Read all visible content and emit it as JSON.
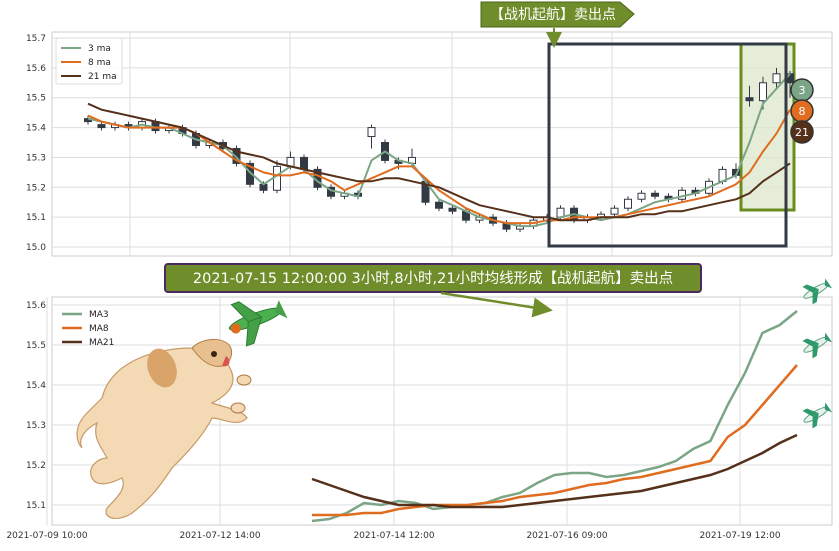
{
  "colors": {
    "ma3": "#7ba587",
    "ma8": "#e06c1f",
    "ma21": "#55301a",
    "grid": "#dddddd",
    "banner_bg": "#6f8d2a",
    "box": "#333a44",
    "highlight_fill": "#dfe8cf",
    "highlight_stroke": "#6a8c1e",
    "candle_down": "#333a44"
  },
  "top_banner": {
    "text": "【战机起航】卖出点"
  },
  "middle_banner": {
    "text": "2021-07-15 12:00:00 3小时,8小时,21小时均线形成【战机起航】卖出点"
  },
  "badges": {
    "ma3": "3",
    "ma8": "8",
    "ma21": "21"
  },
  "icons": [
    "airplane-icon",
    "dog-illustration",
    "arrow-icon"
  ],
  "chart_data": [
    {
      "type": "candlestick",
      "title": "",
      "ylim": [
        14.97,
        15.72
      ],
      "y_ticks": [
        "15.0",
        "15.1",
        "15.2",
        "15.3",
        "15.4",
        "15.5",
        "15.6",
        "15.7"
      ],
      "grid": true,
      "legend_placement": "top-left",
      "series": [
        {
          "name": "3 ma",
          "color": "#7ba587",
          "values": [
            15.43,
            15.42,
            15.41,
            15.4,
            15.41,
            15.4,
            15.4,
            15.38,
            15.36,
            15.35,
            15.34,
            15.3,
            15.25,
            15.21,
            15.24,
            15.27,
            15.26,
            15.22,
            15.19,
            15.18,
            15.17,
            15.29,
            15.32,
            15.29,
            15.28,
            15.22,
            15.16,
            15.14,
            15.12,
            15.1,
            15.09,
            15.08,
            15.07,
            15.07,
            15.08,
            15.1,
            15.11,
            15.1,
            15.09,
            15.1,
            15.11,
            15.13,
            15.15,
            15.16,
            15.17,
            15.18,
            15.2,
            15.22,
            15.24,
            15.35,
            15.48,
            15.53,
            15.58
          ]
        },
        {
          "name": "8 ma",
          "color": "#e06c1f",
          "values": [
            15.44,
            15.42,
            15.41,
            15.4,
            15.4,
            15.4,
            15.4,
            15.4,
            15.38,
            15.35,
            15.32,
            15.29,
            15.27,
            15.25,
            15.24,
            15.24,
            15.25,
            15.24,
            15.22,
            15.19,
            15.21,
            15.23,
            15.25,
            15.27,
            15.27,
            15.23,
            15.19,
            15.16,
            15.13,
            15.11,
            15.09,
            15.08,
            15.08,
            15.08,
            15.09,
            15.09,
            15.1,
            15.1,
            15.1,
            15.1,
            15.11,
            15.12,
            15.13,
            15.14,
            15.15,
            15.16,
            15.17,
            15.19,
            15.21,
            15.25,
            15.32,
            15.38,
            15.46
          ]
        },
        {
          "name": "21 ma",
          "color": "#55301a",
          "values": [
            15.48,
            15.46,
            15.45,
            15.44,
            15.43,
            15.42,
            15.41,
            15.4,
            15.38,
            15.36,
            15.34,
            15.32,
            15.31,
            15.3,
            15.28,
            15.27,
            15.26,
            15.25,
            15.24,
            15.23,
            15.22,
            15.22,
            15.23,
            15.23,
            15.22,
            15.21,
            15.2,
            15.18,
            15.16,
            15.14,
            15.13,
            15.12,
            15.11,
            15.1,
            15.1,
            15.09,
            15.09,
            15.09,
            15.1,
            15.1,
            15.1,
            15.11,
            15.11,
            15.12,
            15.12,
            15.13,
            15.14,
            15.15,
            15.16,
            15.18,
            15.22,
            15.25,
            15.28
          ]
        }
      ],
      "candles": [
        [
          15.43,
          15.42,
          15.44,
          15.41
        ],
        [
          15.41,
          15.4,
          15.42,
          15.39
        ],
        [
          15.4,
          15.41,
          15.42,
          15.39
        ],
        [
          15.41,
          15.4,
          15.42,
          15.39
        ],
        [
          15.4,
          15.42,
          15.43,
          15.39
        ],
        [
          15.42,
          15.39,
          15.43,
          15.38
        ],
        [
          15.39,
          15.4,
          15.41,
          15.38
        ],
        [
          15.4,
          15.38,
          15.41,
          15.37
        ],
        [
          15.38,
          15.34,
          15.39,
          15.33
        ],
        [
          15.34,
          15.35,
          15.36,
          15.33
        ],
        [
          15.35,
          15.33,
          15.36,
          15.32
        ],
        [
          15.33,
          15.28,
          15.34,
          15.27
        ],
        [
          15.28,
          15.21,
          15.29,
          15.2
        ],
        [
          15.21,
          15.19,
          15.22,
          15.18
        ],
        [
          15.19,
          15.27,
          15.29,
          15.18
        ],
        [
          15.27,
          15.3,
          15.32,
          15.26
        ],
        [
          15.3,
          15.26,
          15.31,
          15.25
        ],
        [
          15.26,
          15.2,
          15.27,
          15.19
        ],
        [
          15.2,
          15.17,
          15.21,
          15.16
        ],
        [
          15.17,
          15.18,
          15.19,
          15.16
        ],
        [
          15.18,
          15.17,
          15.19,
          15.16
        ],
        [
          15.37,
          15.4,
          15.41,
          15.33
        ],
        [
          15.35,
          15.29,
          15.36,
          15.28
        ],
        [
          15.29,
          15.28,
          15.3,
          15.26
        ],
        [
          15.28,
          15.3,
          15.33,
          15.27
        ],
        [
          15.22,
          15.15,
          15.23,
          15.14
        ],
        [
          15.15,
          15.13,
          15.16,
          15.12
        ],
        [
          15.13,
          15.12,
          15.14,
          15.11
        ],
        [
          15.12,
          15.09,
          15.13,
          15.08
        ],
        [
          15.09,
          15.1,
          15.11,
          15.08
        ],
        [
          15.1,
          15.08,
          15.11,
          15.07
        ],
        [
          15.08,
          15.06,
          15.09,
          15.05
        ],
        [
          15.06,
          15.07,
          15.08,
          15.05
        ],
        [
          15.07,
          15.09,
          15.1,
          15.06
        ],
        [
          15.09,
          15.1,
          15.11,
          15.08
        ],
        [
          15.1,
          15.13,
          15.14,
          15.09
        ],
        [
          15.13,
          15.09,
          15.14,
          15.08
        ],
        [
          15.09,
          15.1,
          15.11,
          15.08
        ],
        [
          15.1,
          15.11,
          15.12,
          15.09
        ],
        [
          15.11,
          15.13,
          15.14,
          15.1
        ],
        [
          15.13,
          15.16,
          15.17,
          15.12
        ],
        [
          15.16,
          15.18,
          15.19,
          15.15
        ],
        [
          15.18,
          15.17,
          15.19,
          15.16
        ],
        [
          15.17,
          15.16,
          15.18,
          15.15
        ],
        [
          15.16,
          15.19,
          15.2,
          15.15
        ],
        [
          15.19,
          15.18,
          15.2,
          15.17
        ],
        [
          15.18,
          15.22,
          15.23,
          15.17
        ],
        [
          15.22,
          15.26,
          15.27,
          15.21
        ],
        [
          15.26,
          15.24,
          15.28,
          15.23
        ],
        [
          15.5,
          15.49,
          15.54,
          15.47
        ],
        [
          15.49,
          15.55,
          15.57,
          15.46
        ],
        [
          15.55,
          15.58,
          15.6,
          15.53
        ],
        [
          15.58,
          15.55,
          15.59,
          15.5
        ]
      ]
    },
    {
      "type": "line",
      "title": "",
      "x_ticks": [
        "2021-07-09 10:00",
        "2021-07-12 14:00",
        "2021-07-14 12:00",
        "2021-07-16 09:00",
        "2021-07-19 12:00"
      ],
      "y_ticks": [
        "15.1",
        "15.2",
        "15.3",
        "15.4",
        "15.5",
        "15.6"
      ],
      "ylim": [
        15.05,
        15.62
      ],
      "grid": true,
      "legend_placement": "top-left",
      "series": [
        {
          "name": "MA3",
          "color": "#7ba587",
          "values": [
            15.06,
            15.065,
            15.08,
            15.105,
            15.1,
            15.11,
            15.105,
            15.09,
            15.095,
            15.1,
            15.105,
            15.12,
            15.13,
            15.155,
            15.175,
            15.18,
            15.18,
            15.17,
            15.175,
            15.185,
            15.195,
            15.21,
            15.24,
            15.26,
            15.35,
            15.43,
            15.53,
            15.55,
            15.585
          ]
        },
        {
          "name": "MA8",
          "color": "#e06c1f",
          "values": [
            15.075,
            15.075,
            15.075,
            15.08,
            15.08,
            15.09,
            15.095,
            15.1,
            15.1,
            15.1,
            15.105,
            15.11,
            15.12,
            15.125,
            15.13,
            15.14,
            15.15,
            15.155,
            15.165,
            15.17,
            15.18,
            15.19,
            15.2,
            15.21,
            15.27,
            15.3,
            15.35,
            15.4,
            15.45
          ]
        },
        {
          "name": "MA21",
          "color": "#55301a",
          "values": [
            15.165,
            15.15,
            15.135,
            15.12,
            15.11,
            15.1,
            15.1,
            15.1,
            15.095,
            15.095,
            15.095,
            15.095,
            15.1,
            15.105,
            15.11,
            15.115,
            15.12,
            15.125,
            15.13,
            15.135,
            15.145,
            15.155,
            15.165,
            15.175,
            15.19,
            15.21,
            15.23,
            15.255,
            15.275
          ]
        }
      ]
    }
  ]
}
